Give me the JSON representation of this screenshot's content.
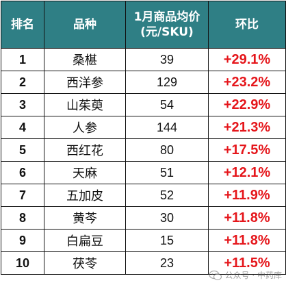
{
  "table": {
    "headers": {
      "rank": "排名",
      "name": "品种",
      "price_line1": "1月商品均价",
      "price_line2": "(元/SKU)",
      "change": "环比"
    },
    "rows": [
      {
        "rank": "1",
        "name": "桑椹",
        "price": "39",
        "change": "+29.1%"
      },
      {
        "rank": "2",
        "name": "西洋参",
        "price": "129",
        "change": "+23.2%"
      },
      {
        "rank": "3",
        "name": "山茱萸",
        "price": "54",
        "change": "+22.9%"
      },
      {
        "rank": "4",
        "name": "人参",
        "price": "144",
        "change": "+21.3%"
      },
      {
        "rank": "5",
        "name": "西红花",
        "price": "80",
        "change": "+17.5%"
      },
      {
        "rank": "6",
        "name": "天麻",
        "price": "51",
        "change": "+12.1%"
      },
      {
        "rank": "7",
        "name": "五加皮",
        "price": "52",
        "change": "+11.9%"
      },
      {
        "rank": "8",
        "name": "黄芩",
        "price": "30",
        "change": "+11.8%"
      },
      {
        "rank": "9",
        "name": "白扁豆",
        "price": "15",
        "change": "+11.8%"
      },
      {
        "rank": "10",
        "name": "茯苓",
        "price": "23",
        "change": "+11.5%"
      }
    ]
  },
  "watermark": {
    "text": "公众号 · 中药库",
    "icon": "wechat-icon"
  },
  "colors": {
    "header_bg": "#2f7f85",
    "header_text": "#ffffff",
    "change_text": "#e5161b",
    "border": "#111111"
  }
}
